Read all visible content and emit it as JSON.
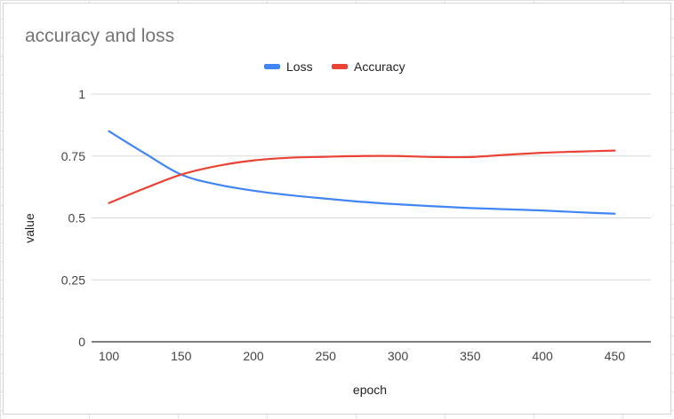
{
  "chart_data": {
    "type": "line",
    "title": "accuracy and loss",
    "xlabel": "epoch",
    "ylabel": "value",
    "x": [
      100,
      125,
      150,
      175,
      200,
      225,
      250,
      275,
      300,
      325,
      350,
      375,
      400,
      425,
      450
    ],
    "x_ticks": [
      "100",
      "150",
      "200",
      "250",
      "300",
      "350",
      "400",
      "450"
    ],
    "y_ticks": [
      "0",
      "0.25",
      "0.5",
      "0.75",
      "1"
    ],
    "xlim": [
      88,
      475
    ],
    "ylim": [
      0,
      1
    ],
    "grid": true,
    "legend": "top-center",
    "series": [
      {
        "name": "Loss",
        "color": "#4285f4",
        "values": [
          0.85,
          0.76,
          0.675,
          0.635,
          0.61,
          0.592,
          0.578,
          0.565,
          0.555,
          0.547,
          0.54,
          0.535,
          0.53,
          0.523,
          0.517
        ]
      },
      {
        "name": "Accuracy",
        "color": "#ea4335",
        "values": [
          0.56,
          0.62,
          0.675,
          0.71,
          0.732,
          0.743,
          0.747,
          0.75,
          0.75,
          0.746,
          0.746,
          0.755,
          0.763,
          0.768,
          0.772
        ]
      }
    ]
  }
}
